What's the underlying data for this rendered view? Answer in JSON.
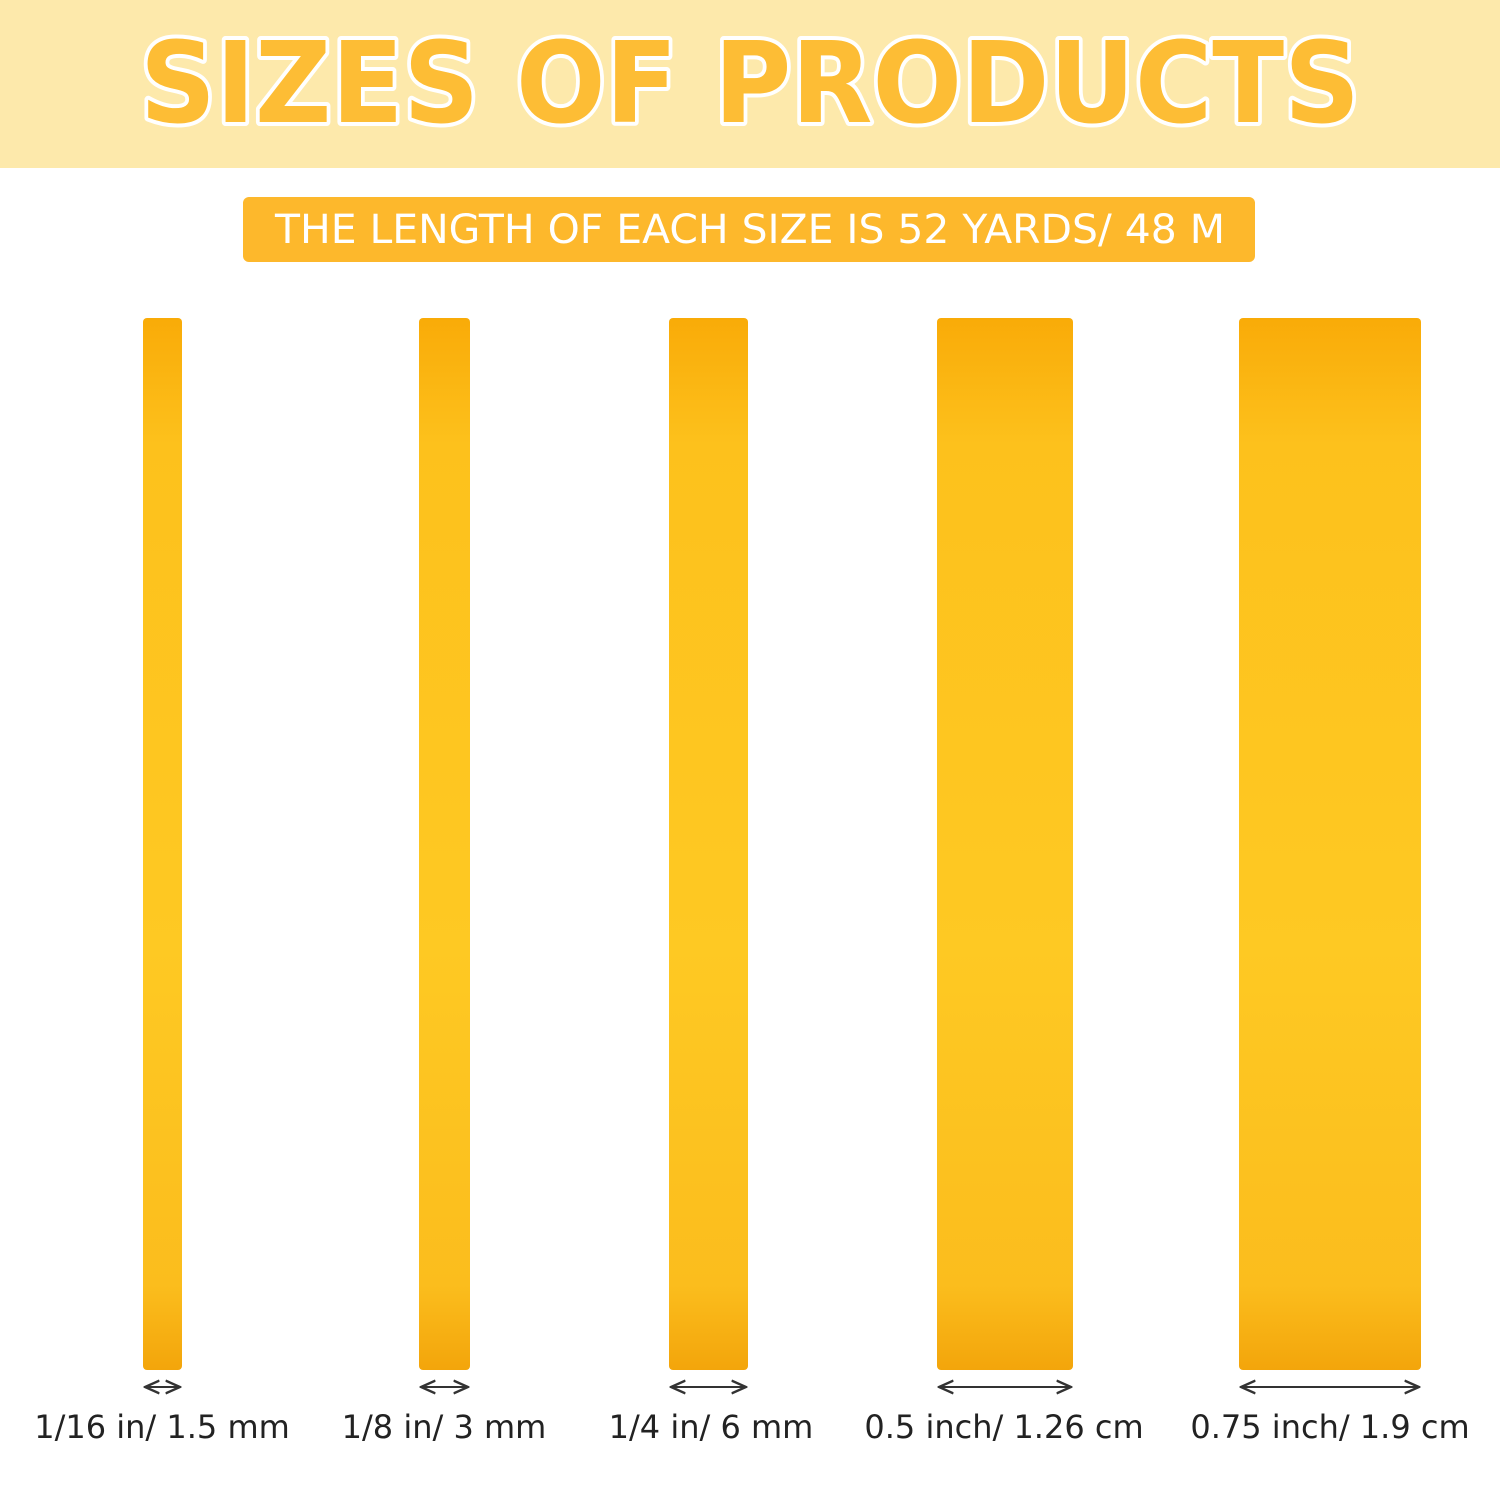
{
  "header": {
    "title": "SIZES OF PRODUCTS",
    "subtitle": "THE LENGTH OF EACH SIZE IS 52 YARDS/ 48 M"
  },
  "products": [
    {
      "label": "1/16 in/ 1.5 mm"
    },
    {
      "label": "1/8 in/ 3 mm"
    },
    {
      "label": "1/4 in/ 6 mm"
    },
    {
      "label": "0.5 inch/ 1.26 cm"
    },
    {
      "label": "0.75 inch/ 1.9 cm"
    }
  ]
}
